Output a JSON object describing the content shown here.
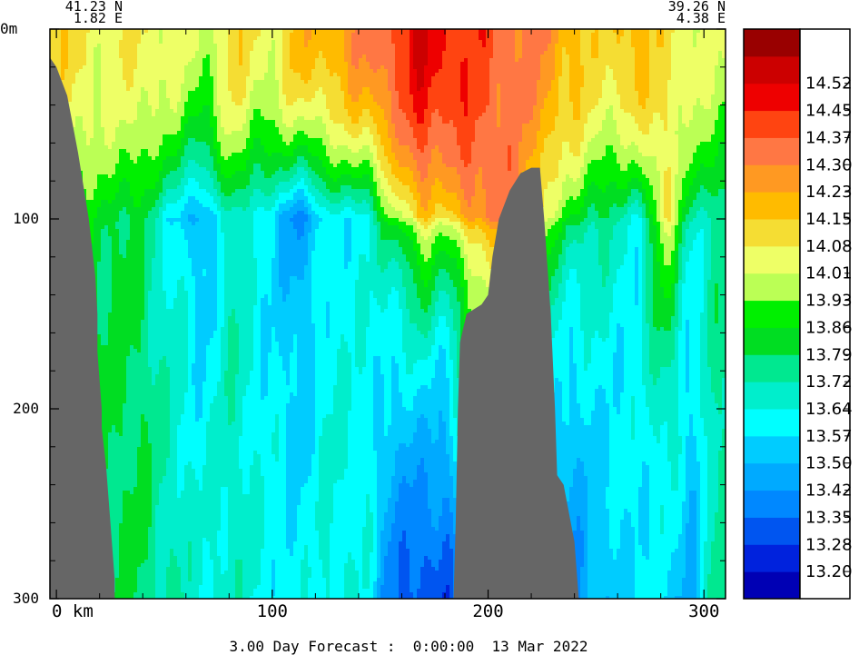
{
  "start_point": {
    "lat": "41.23 N",
    "lon": "1.82 E"
  },
  "end_point": {
    "lat": "39.26 N",
    "lon": "4.38 E"
  },
  "forecast_caption": "3.00 Day Forecast :  0:00:00  13 Mar 2022",
  "colors": {
    "bathymetry": "#666666",
    "frame": "#000000"
  },
  "chart_data": {
    "type": "heatmap",
    "title": "",
    "xlabel": "",
    "ylabel": "",
    "xlim": [
      -3,
      310
    ],
    "ylim": [
      300,
      0
    ],
    "y_axis_inverted": true,
    "x_tick_labels": [
      {
        "value": 0,
        "label": "0 km"
      },
      {
        "value": 100,
        "label": "100"
      },
      {
        "value": 200,
        "label": "200"
      },
      {
        "value": 300,
        "label": "300"
      }
    ],
    "y_tick_labels": [
      {
        "value": 0,
        "label": "0m"
      },
      {
        "value": 100,
        "label": "100"
      },
      {
        "value": 200,
        "label": "200"
      },
      {
        "value": 300,
        "label": "300"
      }
    ],
    "colorbar": {
      "placement": "right",
      "colors": [
        "#0000b4",
        "#0022dd",
        "#0055f0",
        "#0088ff",
        "#00aaff",
        "#00ccff",
        "#00ffff",
        "#00eecc",
        "#00e890",
        "#00dd22",
        "#00f000",
        "#bbff55",
        "#eeff66",
        "#f5dd33",
        "#ffbb00",
        "#ff9922",
        "#ff7744",
        "#ff4411",
        "#ee0000",
        "#cc0000",
        "#990000"
      ],
      "labels": [
        "13.20",
        "13.28",
        "13.35",
        "13.42",
        "13.50",
        "13.57",
        "13.64",
        "13.72",
        "13.79",
        "13.86",
        "13.93",
        "14.01",
        "14.08",
        "14.15",
        "14.23",
        "14.30",
        "14.37",
        "14.45",
        "14.52"
      ]
    },
    "bathymetry": {
      "left_slope": [
        [
          -3,
          15
        ],
        [
          0,
          20
        ],
        [
          5,
          35
        ],
        [
          10,
          65
        ],
        [
          15,
          100
        ],
        [
          18,
          130
        ],
        [
          19,
          150
        ],
        [
          19,
          170
        ],
        [
          21,
          200
        ],
        [
          21,
          210
        ],
        [
          23,
          230
        ],
        [
          25,
          260
        ],
        [
          27,
          290
        ],
        [
          27,
          300
        ],
        [
          -3,
          300
        ]
      ],
      "seamount": [
        [
          184,
          300
        ],
        [
          185,
          260
        ],
        [
          186,
          200
        ],
        [
          187,
          165
        ],
        [
          190,
          150
        ],
        [
          197,
          145
        ],
        [
          200,
          140
        ],
        [
          202,
          120
        ],
        [
          205,
          100
        ],
        [
          210,
          85
        ],
        [
          215,
          76
        ],
        [
          220,
          73
        ],
        [
          224,
          73
        ],
        [
          226,
          100
        ],
        [
          229,
          150
        ],
        [
          231,
          200
        ],
        [
          232,
          235
        ],
        [
          235,
          240
        ],
        [
          240,
          270
        ],
        [
          242,
          300
        ]
      ]
    },
    "section_temperature_bands": [
      {
        "x_range": [
          -3,
          15
        ],
        "surface": 14.12,
        "mid": 13.86,
        "deep": 13.8
      },
      {
        "x_range": [
          15,
          30
        ],
        "surface": 14.05,
        "mid": 13.82,
        "deep": 13.78
      },
      {
        "x_range": [
          30,
          45
        ],
        "surface": 14.09,
        "mid": 13.8,
        "deep": 13.79
      },
      {
        "x_range": [
          45,
          60
        ],
        "surface": 14.05,
        "mid": 13.6,
        "deep": 13.72
      },
      {
        "x_range": [
          60,
          75
        ],
        "surface": 13.98,
        "mid": 13.45,
        "deep": 13.66
      },
      {
        "x_range": [
          75,
          90
        ],
        "surface": 14.12,
        "mid": 13.72,
        "deep": 13.68
      },
      {
        "x_range": [
          90,
          105
        ],
        "surface": 14.05,
        "mid": 13.55,
        "deep": 13.62
      },
      {
        "x_range": [
          105,
          120
        ],
        "surface": 14.18,
        "mid": 13.4,
        "deep": 13.6
      },
      {
        "x_range": [
          120,
          135
        ],
        "surface": 14.2,
        "mid": 13.58,
        "deep": 13.66
      },
      {
        "x_range": [
          135,
          150
        ],
        "surface": 14.3,
        "mid": 13.62,
        "deep": 13.62
      },
      {
        "x_range": [
          150,
          165
        ],
        "surface": 14.4,
        "mid": 13.95,
        "deep": 13.35
      },
      {
        "x_range": [
          165,
          175
        ],
        "surface": 14.52,
        "mid": 14.2,
        "deep": 13.28
      },
      {
        "x_range": [
          175,
          184
        ],
        "surface": 14.47,
        "mid": 14.05,
        "deep": 13.3
      },
      {
        "x_range": [
          184,
          200
        ],
        "surface": 14.42,
        "mid": 14.3,
        "deep": 13.5
      },
      {
        "x_range": [
          200,
          215
        ],
        "surface": 14.35,
        "mid": 14.32,
        "deep": 13.55
      },
      {
        "x_range": [
          215,
          230
        ],
        "surface": 14.3,
        "mid": 14.1,
        "deep": 13.5
      },
      {
        "x_range": [
          230,
          245
        ],
        "surface": 14.2,
        "mid": 13.85,
        "deep": 13.4
      },
      {
        "x_range": [
          245,
          260
        ],
        "surface": 14.1,
        "mid": 13.78,
        "deep": 13.5
      },
      {
        "x_range": [
          260,
          275
        ],
        "surface": 14.2,
        "mid": 13.62,
        "deep": 13.58
      },
      {
        "x_range": [
          275,
          290
        ],
        "surface": 14.1,
        "mid": 14.08,
        "deep": 13.55
      },
      {
        "x_range": [
          290,
          300
        ],
        "surface": 14.05,
        "mid": 13.7,
        "deep": 13.48
      },
      {
        "x_range": [
          300,
          310
        ],
        "surface": 14.0,
        "mid": 13.75,
        "deep": 13.72
      }
    ]
  }
}
